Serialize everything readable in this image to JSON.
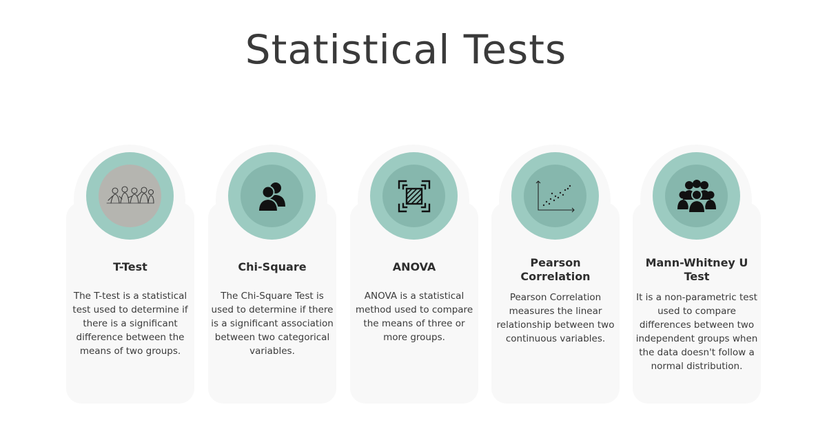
{
  "page": {
    "title": "Statistical Tests"
  },
  "colors": {
    "ring": "#9ccbc1",
    "inner": "#86b7ad",
    "card": "#f8f8f8",
    "text": "#333333"
  },
  "cards": [
    {
      "title": "T-Test",
      "icon": "people-sketch-icon",
      "description": "The T-test is a statistical test used to determine if there is a significant difference between the means of two groups."
    },
    {
      "title": "Chi-Square",
      "icon": "two-users-icon",
      "description": "The Chi-Square Test is used to determine if there is a significant association between two categorical variables."
    },
    {
      "title": "ANOVA",
      "icon": "focus-frame-icon",
      "description": "ANOVA is a statistical method used to compare the means of three or more groups."
    },
    {
      "title": "Pearson Correlation",
      "icon": "scatter-plot-icon",
      "description": "Pearson Correlation measures the linear relationship between two continuous variables."
    },
    {
      "title": "Mann-Whitney U Test",
      "icon": "group-icon",
      "description": "It is a non-parametric test used to compare differences between two independent groups when the data doesn't follow a normal distribution."
    }
  ]
}
